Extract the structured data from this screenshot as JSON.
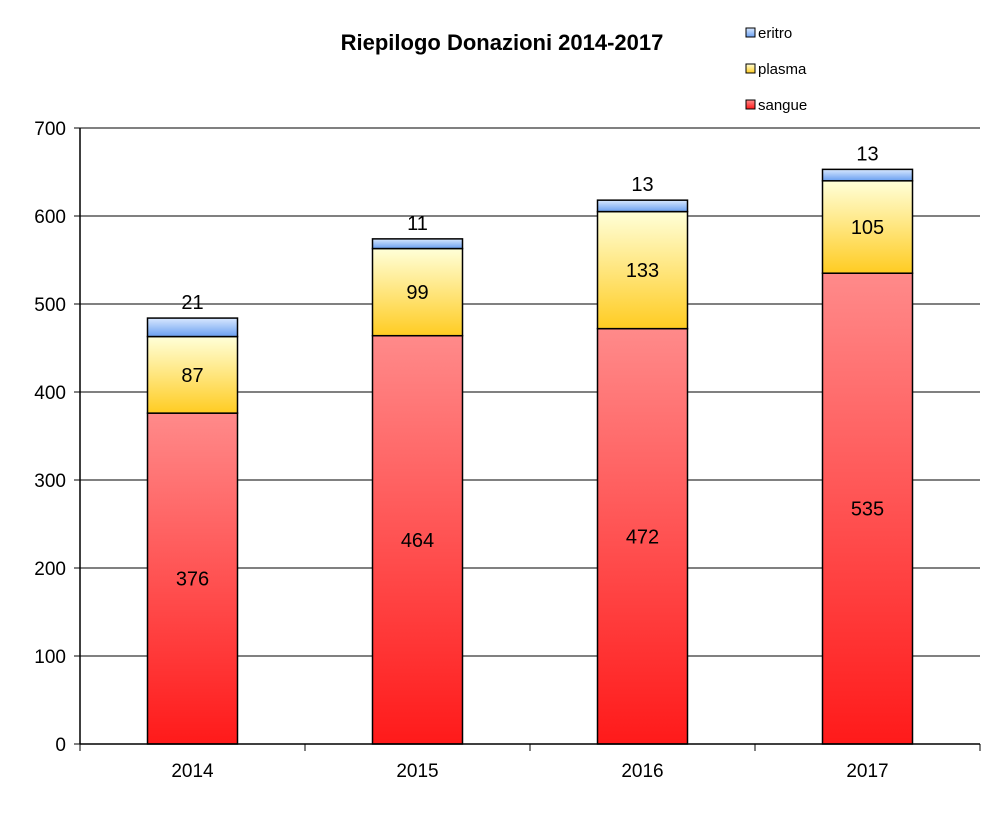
{
  "chart_data": {
    "type": "bar",
    "stacked": true,
    "title": "Riepilogo Donazioni 2014-2017",
    "xlabel": "",
    "ylabel": "",
    "categories": [
      "2014",
      "2015",
      "2016",
      "2017"
    ],
    "ylim": [
      0,
      700
    ],
    "yticks": [
      "0",
      "100",
      "200",
      "300",
      "400",
      "500",
      "600",
      "700"
    ],
    "grid": true,
    "legend_position": "top-right",
    "legend_order": [
      "eritro",
      "plasma",
      "sangue"
    ],
    "series": [
      {
        "name": "sangue",
        "values": [
          376,
          464,
          472,
          535
        ],
        "color_top": "#ff8a8a",
        "color_bottom": "#ff1a1a"
      },
      {
        "name": "plasma",
        "values": [
          87,
          99,
          133,
          105
        ],
        "color_top": "#ffffd8",
        "color_bottom": "#ffcc22"
      },
      {
        "name": "eritro",
        "values": [
          21,
          11,
          13,
          13
        ],
        "color_top": "#d8e8ff",
        "color_bottom": "#6a9ff0"
      }
    ]
  }
}
